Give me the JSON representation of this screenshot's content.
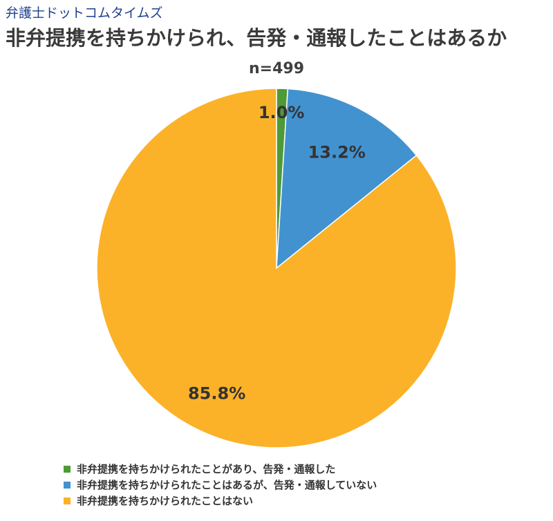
{
  "brand": "弁護士ドットコムタイムズ",
  "chart_data": {
    "type": "pie",
    "title": "非弁提携を持ちかけられ、告発・通報したことはあるか",
    "subtitle": "n=499",
    "start": "top",
    "direction": "clockwise",
    "legend_position": "bottom-left",
    "slices": [
      {
        "label": "非弁提携を持ちかけられたことがあり、告発・通報した",
        "value": 1.0,
        "display": "1.0%",
        "color": "#4e9a37"
      },
      {
        "label": "非弁提携を持ちかけられたことはあるが、告発・通報していない",
        "value": 13.2,
        "display": "13.2%",
        "color": "#4292d0"
      },
      {
        "label": "非弁提携を持ちかけられたことはない",
        "value": 85.8,
        "display": "85.8%",
        "color": "#fbb229"
      }
    ]
  }
}
